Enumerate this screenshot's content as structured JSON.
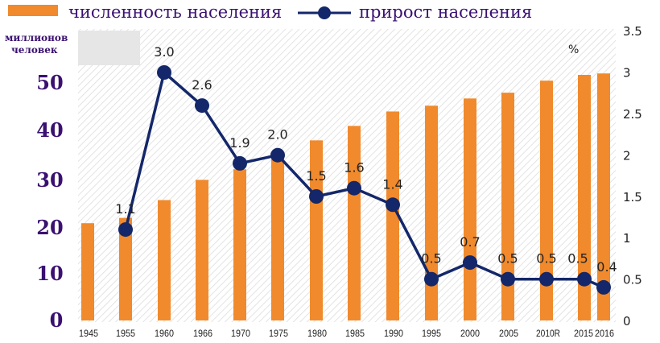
{
  "legend": {
    "population_label": "численность населения",
    "growth_label": "прирост населения"
  },
  "y_left_title_line1": "миллионов",
  "y_left_title_line2": "человек",
  "y_right_unit": "%",
  "colors": {
    "bar": "#f08a2c",
    "line": "#13276a",
    "text": "#3a1070"
  },
  "chart_data": {
    "type": "bar+line",
    "categories": [
      "1945",
      "1955",
      "1960",
      "1966",
      "1970",
      "1975",
      "1980",
      "1985",
      "1990",
      "1995",
      "2000",
      "2005",
      "2010R",
      "2015",
      "2016"
    ],
    "series": [
      {
        "name": "численность населения",
        "type": "bar",
        "axis": "left",
        "values": [
          20.2,
          21.3,
          25.0,
          29.2,
          31.4,
          34.7,
          37.4,
          40.4,
          43.4,
          44.6,
          46.1,
          47.3,
          49.8,
          51.0,
          51.3
        ]
      },
      {
        "name": "прирост населения",
        "type": "line",
        "axis": "right",
        "values": [
          null,
          1.1,
          3.0,
          2.6,
          1.9,
          2.0,
          1.5,
          1.6,
          1.4,
          0.5,
          0.7,
          0.5,
          0.5,
          0.5,
          0.4
        ],
        "labels": [
          "",
          "1.1",
          "3.0",
          "2.6",
          "1.9",
          "2.0",
          "1.5",
          "1.6",
          "1.4",
          "0.5",
          "0.7",
          "0.5",
          "0.5",
          "0.5",
          "0.4"
        ]
      }
    ],
    "y_left": {
      "ticks": [
        "0",
        "10",
        "20",
        "30",
        "40",
        "50"
      ],
      "range": [
        0,
        60
      ]
    },
    "y_right": {
      "ticks": [
        "0",
        "0.5",
        "1",
        "1.5",
        "2",
        "2.5",
        "3",
        "3.5"
      ],
      "range": [
        0,
        3.5
      ]
    },
    "legend_position": "top"
  }
}
